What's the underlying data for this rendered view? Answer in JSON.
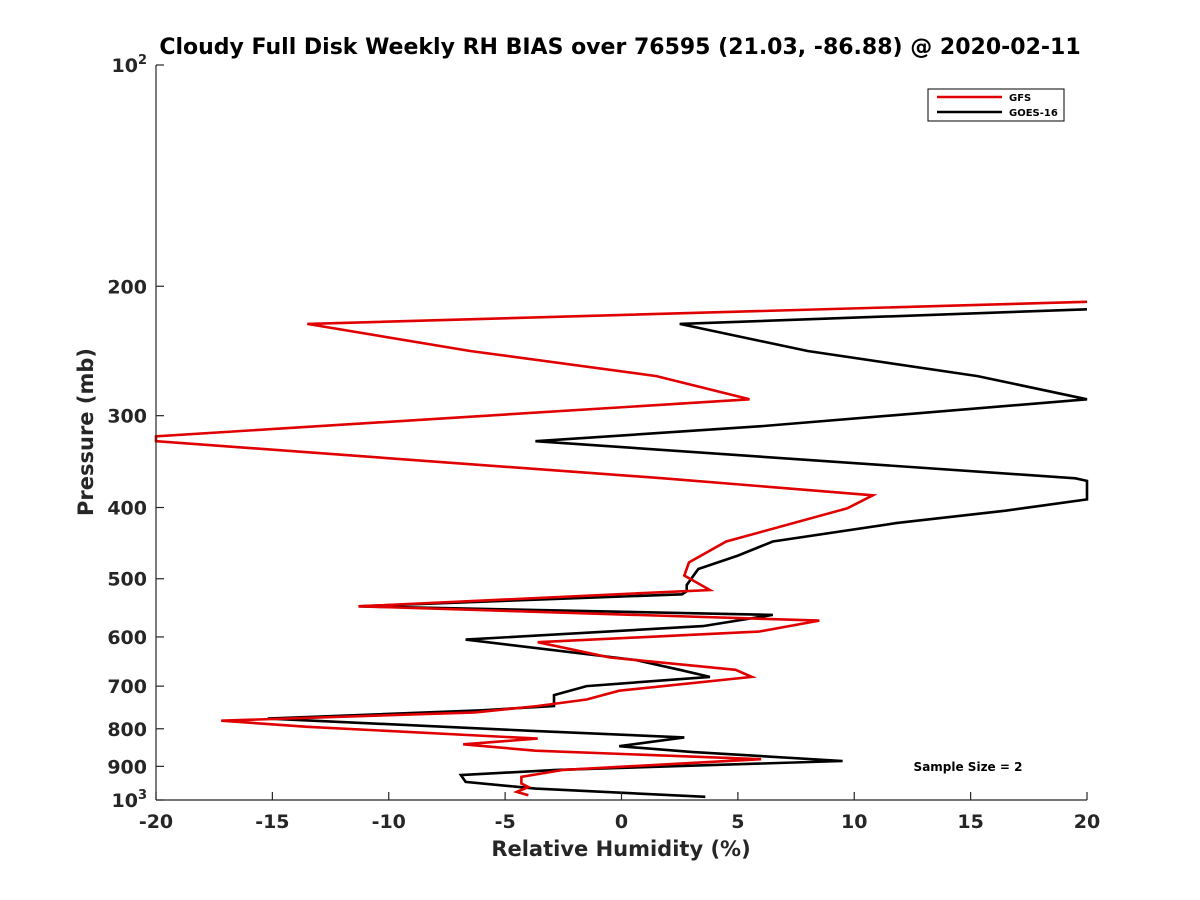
{
  "chart_data": {
    "type": "line",
    "title": "Cloudy Full Disk Weekly RH BIAS over 76595 (21.03, -86.88) @ 2020-02-11",
    "xlabel": "Relative Humidity (%)",
    "ylabel": "Pressure (mb)",
    "xlim": [
      -20,
      20
    ],
    "ylim": [
      100,
      1000
    ],
    "yscale": "log",
    "y_reversed": true,
    "x_ticks": [
      -20,
      -15,
      -10,
      -5,
      0,
      5,
      10,
      15,
      20
    ],
    "x_tick_labels": [
      "-20",
      "-15",
      "-10",
      "-5",
      "0",
      "5",
      "10",
      "15",
      "20"
    ],
    "y_ticks": [
      {
        "value": 100,
        "base": "10",
        "exp": "2"
      },
      {
        "value": 200,
        "label": "200"
      },
      {
        "value": 300,
        "label": "300"
      },
      {
        "value": 400,
        "label": "400"
      },
      {
        "value": 500,
        "label": "500"
      },
      {
        "value": 600,
        "label": "600"
      },
      {
        "value": 700,
        "label": "700"
      },
      {
        "value": 800,
        "label": "800"
      },
      {
        "value": 900,
        "label": "900"
      },
      {
        "value": 1000,
        "base": "10",
        "exp": "3"
      }
    ],
    "legend_position": "top-right",
    "series": [
      {
        "name": "GFS",
        "color": "#e00000",
        "points": [
          [
            20,
            210
          ],
          [
            -13.5,
            225
          ],
          [
            -6.5,
            245
          ],
          [
            1.5,
            265
          ],
          [
            5.5,
            285
          ],
          [
            -20,
            320
          ],
          [
            -20,
            325
          ],
          [
            1.8,
            365
          ],
          [
            10.8,
            385
          ],
          [
            9.7,
            401
          ],
          [
            4.5,
            445
          ],
          [
            2.9,
            475
          ],
          [
            2.7,
            495
          ],
          [
            3.8,
            518
          ],
          [
            -11.3,
            545
          ],
          [
            8.5,
            570
          ],
          [
            5.9,
            590
          ],
          [
            -3.6,
            610
          ],
          [
            -0.5,
            640
          ],
          [
            4.9,
            665
          ],
          [
            5.6,
            680
          ],
          [
            -0.1,
            710
          ],
          [
            -1.5,
            730
          ],
          [
            -3.6,
            745
          ],
          [
            -6.3,
            760
          ],
          [
            -17.2,
            780
          ],
          [
            -13.5,
            795
          ],
          [
            -3.6,
            825
          ],
          [
            -6.8,
            840
          ],
          [
            -3.7,
            857
          ],
          [
            6.0,
            880
          ],
          [
            -2.5,
            910
          ],
          [
            -4.3,
            930
          ],
          [
            -4.3,
            950
          ],
          [
            -4.0,
            960
          ],
          [
            -4.5,
            975
          ],
          [
            -4.0,
            985
          ]
        ]
      },
      {
        "name": "GOES-16",
        "color": "#000000",
        "points": [
          [
            20,
            215
          ],
          [
            2.5,
            225
          ],
          [
            8,
            245
          ],
          [
            15.3,
            265
          ],
          [
            20,
            285
          ],
          [
            6,
            310
          ],
          [
            -3.7,
            325
          ],
          [
            19.5,
            365
          ],
          [
            20,
            368
          ],
          [
            20,
            390
          ],
          [
            16.5,
            404
          ],
          [
            11.8,
            420
          ],
          [
            6.5,
            445
          ],
          [
            5,
            465
          ],
          [
            3.3,
            485
          ],
          [
            2.8,
            510
          ],
          [
            2.8,
            520
          ],
          [
            2.6,
            525
          ],
          [
            -11.3,
            545
          ],
          [
            6.5,
            560
          ],
          [
            3.5,
            580
          ],
          [
            -6.7,
            605
          ],
          [
            0.6,
            645
          ],
          [
            2.5,
            665
          ],
          [
            3.8,
            680
          ],
          [
            -1.5,
            700
          ],
          [
            -2.9,
            720
          ],
          [
            -2.9,
            745
          ],
          [
            -6.0,
            755
          ],
          [
            -15.2,
            775
          ],
          [
            -3.9,
            805
          ],
          [
            2.7,
            822
          ],
          [
            -0.1,
            845
          ],
          [
            3.0,
            860
          ],
          [
            9.5,
            885
          ],
          [
            -2.8,
            910
          ],
          [
            -6.9,
            925
          ],
          [
            -6.7,
            945
          ],
          [
            -3.7,
            965
          ],
          [
            3.6,
            990
          ]
        ]
      }
    ],
    "annotation": "Sample Size = 2"
  }
}
